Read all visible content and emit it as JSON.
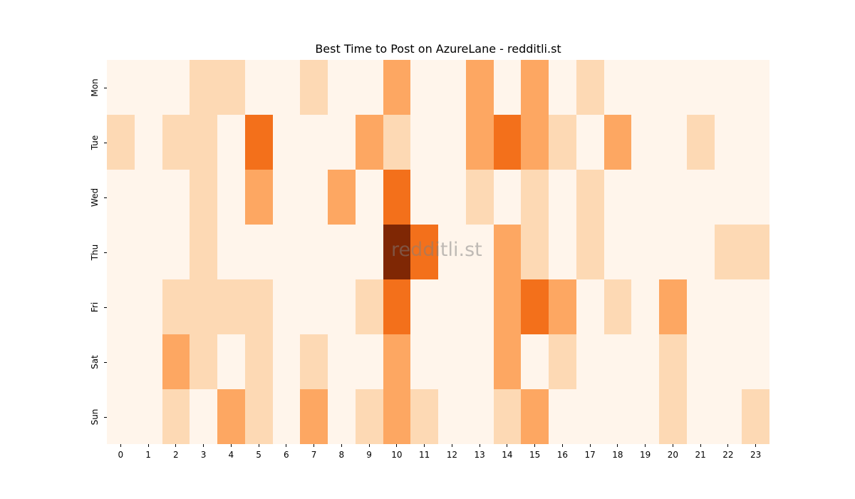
{
  "chart_data": {
    "type": "heatmap",
    "title": "Best Time to Post on AzureLane - redditli.st",
    "xlabel": "",
    "ylabel": "",
    "x": [
      "0",
      "1",
      "2",
      "3",
      "4",
      "5",
      "6",
      "7",
      "8",
      "9",
      "10",
      "11",
      "12",
      "13",
      "14",
      "15",
      "16",
      "17",
      "18",
      "19",
      "20",
      "21",
      "22",
      "23"
    ],
    "y": [
      "Mon",
      "Tue",
      "Wed",
      "Thu",
      "Fri",
      "Sat",
      "Sun"
    ],
    "colormap": "Oranges",
    "levels": [
      "#fff5eb",
      "#fdd9b4",
      "#fda762",
      "#f3701b",
      "#7f2704"
    ],
    "values": [
      [
        0,
        0,
        0,
        1,
        1,
        0,
        0,
        1,
        0,
        0,
        2,
        0,
        0,
        2,
        0,
        2,
        0,
        1,
        0,
        0,
        0,
        0,
        0,
        0
      ],
      [
        1,
        0,
        1,
        1,
        0,
        3,
        0,
        0,
        0,
        2,
        1,
        0,
        0,
        2,
        3,
        2,
        1,
        0,
        2,
        0,
        0,
        1,
        0,
        0
      ],
      [
        0,
        0,
        0,
        1,
        0,
        2,
        0,
        0,
        2,
        0,
        3,
        0,
        0,
        1,
        0,
        1,
        0,
        1,
        0,
        0,
        0,
        0,
        0,
        0
      ],
      [
        0,
        0,
        0,
        1,
        0,
        0,
        0,
        0,
        0,
        0,
        4,
        3,
        0,
        0,
        2,
        1,
        0,
        1,
        0,
        0,
        0,
        0,
        1,
        1
      ],
      [
        0,
        0,
        1,
        1,
        1,
        1,
        0,
        0,
        0,
        1,
        3,
        0,
        0,
        0,
        2,
        3,
        2,
        0,
        1,
        0,
        2,
        0,
        0,
        0
      ],
      [
        0,
        0,
        2,
        1,
        0,
        1,
        0,
        1,
        0,
        0,
        2,
        0,
        0,
        0,
        2,
        0,
        1,
        0,
        0,
        0,
        1,
        0,
        0,
        0
      ],
      [
        0,
        0,
        1,
        0,
        2,
        1,
        0,
        2,
        0,
        1,
        2,
        1,
        0,
        0,
        1,
        2,
        0,
        0,
        0,
        0,
        1,
        0,
        0,
        1
      ]
    ],
    "watermark": "redditli.st",
    "legend": "none",
    "grid": false
  }
}
